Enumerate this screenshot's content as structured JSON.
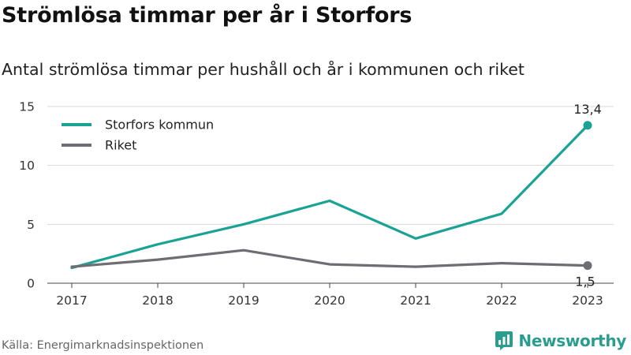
{
  "title": "Strömlösa timmar per år i Storfors",
  "subtitle": "Antal strömlösa timmar per hushåll och år i kommunen och riket",
  "source": "Källa: Energimarknadsinspektionen",
  "brand": {
    "name": "Newsworthy",
    "icon": "newsworthy-logo-icon",
    "color": "#2a9d8f"
  },
  "chart_data": {
    "type": "line",
    "x": [
      "2017",
      "2018",
      "2019",
      "2020",
      "2021",
      "2022",
      "2023"
    ],
    "ylim": [
      0,
      15
    ],
    "yticks": [
      0,
      5,
      10,
      15
    ],
    "grid": true,
    "legend_position": "top-left",
    "series": [
      {
        "name": "Storfors kommun",
        "color": "#1aa394",
        "values": [
          1.3,
          3.3,
          5.0,
          7.0,
          3.8,
          5.9,
          13.4
        ],
        "end_label": "13,4"
      },
      {
        "name": "Riket",
        "color": "#6e6d73",
        "values": [
          1.4,
          2.0,
          2.8,
          1.6,
          1.4,
          1.7,
          1.5
        ],
        "end_label": "1,5"
      }
    ]
  }
}
